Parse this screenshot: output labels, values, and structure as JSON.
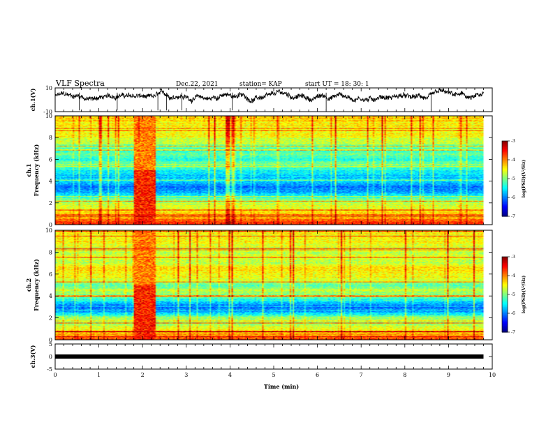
{
  "header": {
    "title": "VLF Spectra",
    "date": "Dec.22, 2021",
    "station": "station= KAP",
    "start": "start  UT =   18: 30: 1"
  },
  "chart_data": [
    {
      "type": "line",
      "name": "ch1-waveform",
      "ylabel": "ch.1(V)",
      "ylim": [
        -10,
        10
      ],
      "yticks": [
        "10",
        "-10"
      ],
      "xlim": [
        0,
        10
      ],
      "x_end_min": 9.8,
      "mean_v": 2.5,
      "fluctuation_v": 3.5
    },
    {
      "type": "heatmap",
      "name": "ch1-spectrogram",
      "ylabel": "ch.1\nFrequency  (kHz)",
      "ylim": [
        0,
        10
      ],
      "yticks": [
        "0",
        "2",
        "4",
        "6",
        "8",
        "10"
      ],
      "xlim": [
        0,
        10
      ],
      "x_end_min": 9.8,
      "burst_interval_min": [
        1.8,
        2.3
      ],
      "freq_profile_khz": [
        0,
        0.5,
        1,
        1.5,
        2,
        2.5,
        3,
        3.5,
        4,
        4.5,
        5,
        5.5,
        6,
        6.5,
        7,
        7.5,
        8,
        8.5,
        9,
        9.5,
        10
      ],
      "log_psd_profile": [
        -3.6,
        -4.0,
        -4.3,
        -4.6,
        -4.8,
        -5.3,
        -5.9,
        -6.0,
        -5.6,
        -5.7,
        -5.5,
        -4.9,
        -5.4,
        -5.1,
        -5.3,
        -4.8,
        -4.6,
        -4.5,
        -4.5,
        -4.4,
        -4.3
      ],
      "colorbar": {
        "min": -7,
        "max": -3,
        "ticks": [
          "-3",
          "-4",
          "-5",
          "-6",
          "-7"
        ],
        "label": "log(PSD)(V²/Hz)"
      }
    },
    {
      "type": "heatmap",
      "name": "ch2-spectrogram",
      "ylabel": "ch.2\nFrequency  (kHz)",
      "ylim": [
        0,
        10
      ],
      "yticks": [
        "0",
        "2",
        "4",
        "6",
        "8",
        "10"
      ],
      "xlim": [
        0,
        10
      ],
      "x_end_min": 9.8,
      "burst_interval_min": [
        1.8,
        2.3
      ],
      "freq_profile_khz": [
        0,
        0.5,
        1,
        1.5,
        2,
        2.5,
        3,
        3.5,
        4,
        4.5,
        5,
        5.5,
        6,
        6.5,
        7,
        7.5,
        8,
        8.5,
        9,
        9.5,
        10
      ],
      "log_psd_profile": [
        -3.7,
        -4.2,
        -4.6,
        -4.8,
        -4.9,
        -5.7,
        -6.2,
        -5.5,
        -5.0,
        -4.7,
        -5.2,
        -4.6,
        -4.5,
        -4.4,
        -4.8,
        -4.6,
        -4.7,
        -4.6,
        -4.5,
        -4.5,
        -4.4
      ],
      "colorbar": {
        "min": -7,
        "max": -3,
        "ticks": [
          "-3",
          "-4",
          "-5",
          "-6",
          "-7"
        ],
        "label": "log(PSD)(V²/Hz)"
      }
    },
    {
      "type": "line",
      "name": "ch3-waveform",
      "ylabel": "ch.3(V)",
      "ylim": [
        -5,
        5
      ],
      "yticks": [
        "5",
        "0",
        "-5"
      ],
      "xlim": [
        0,
        10
      ],
      "x_end_min": 9.8,
      "value_v": 0
    }
  ],
  "xaxis": {
    "label": "Time  (min)",
    "ticks": [
      "0",
      "1",
      "2",
      "3",
      "4",
      "5",
      "6",
      "7",
      "8",
      "9",
      "10"
    ]
  },
  "colors": {
    "colormap": [
      "#00007f",
      "#0000ff",
      "#0080ff",
      "#00ffff",
      "#80ff80",
      "#ffff00",
      "#ff8000",
      "#ff0000",
      "#7f0000"
    ]
  }
}
